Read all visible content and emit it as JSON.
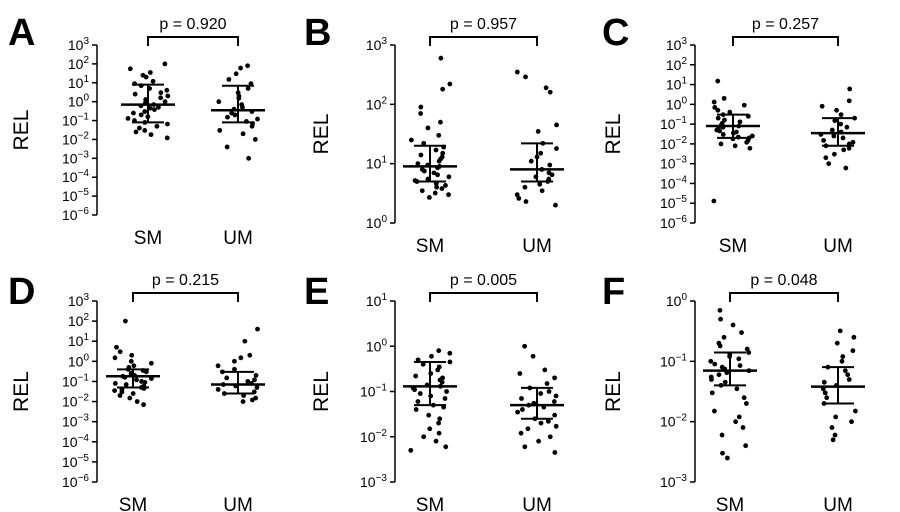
{
  "figure": {
    "panels": [
      {
        "letter": "A",
        "ylabel": "REL",
        "p_value": "p = 0.920",
        "categories": [
          "SM",
          "UM"
        ]
      },
      {
        "letter": "B",
        "ylabel": "REL",
        "p_value": "p = 0.957",
        "categories": [
          "SM",
          "UM"
        ]
      },
      {
        "letter": "C",
        "ylabel": "REL",
        "p_value": "p = 0.257",
        "categories": [
          "SM",
          "UM"
        ]
      },
      {
        "letter": "D",
        "ylabel": "REL",
        "p_value": "p = 0.215",
        "categories": [
          "SM",
          "UM"
        ]
      },
      {
        "letter": "E",
        "ylabel": "REL",
        "p_value": "p = 0.005",
        "categories": [
          "SM",
          "UM"
        ]
      },
      {
        "letter": "F",
        "ylabel": "REL",
        "p_value": "p = 0.048",
        "categories": [
          "SM",
          "UM"
        ]
      }
    ]
  },
  "chart_data": [
    {
      "type": "scatter",
      "panel": "A",
      "ylabel": "REL",
      "yscale": "log",
      "ylim": [
        1e-06,
        1000.0
      ],
      "yticks": [
        "10^-6",
        "10^-5",
        "10^-4",
        "10^-3",
        "10^-2",
        "10^-1",
        "10^0",
        "10^1",
        "10^2",
        "10^3"
      ],
      "categories": [
        "SM",
        "UM"
      ],
      "comparison": "p = 0.920",
      "series": [
        {
          "name": "SM",
          "median": 0.7,
          "q1": 0.08,
          "q3": 8,
          "values": [
            100,
            55,
            35,
            25,
            20,
            12,
            9,
            7,
            5,
            4,
            3,
            2.5,
            2,
            1.6,
            1.3,
            1,
            0.85,
            0.7,
            0.6,
            0.5,
            0.45,
            0.38,
            0.3,
            0.25,
            0.2,
            0.16,
            0.13,
            0.1,
            0.08,
            0.065,
            0.05,
            0.04,
            0.03,
            0.025,
            0.018,
            0.012
          ]
        },
        {
          "name": "UM",
          "median": 0.35,
          "q1": 0.08,
          "q3": 7,
          "values": [
            80,
            60,
            30,
            15,
            9,
            5,
            3,
            2,
            1.5,
            1,
            0.7,
            0.5,
            0.4,
            0.3,
            0.25,
            0.2,
            0.15,
            0.12,
            0.09,
            0.07,
            0.05,
            0.03,
            0.02,
            0.01,
            0.004,
            0.001
          ]
        }
      ]
    },
    {
      "type": "scatter",
      "panel": "B",
      "ylabel": "REL",
      "yscale": "log",
      "ylim": [
        1,
        1000
      ],
      "yticks": [
        "10^0",
        "10^1",
        "10^2",
        "10^3"
      ],
      "categories": [
        "SM",
        "UM"
      ],
      "comparison": "p = 0.957",
      "series": [
        {
          "name": "SM",
          "median": 9,
          "q1": 5,
          "q3": 20,
          "values": [
            600,
            220,
            180,
            90,
            70,
            50,
            40,
            30,
            25,
            22,
            19,
            17,
            15,
            14,
            13,
            12,
            11,
            10,
            9.5,
            9,
            8.5,
            8,
            7.5,
            7,
            6.5,
            6,
            5.5,
            5.2,
            5,
            4.6,
            4.3,
            4,
            3.8,
            3.5,
            3.2,
            3,
            2.7
          ]
        },
        {
          "name": "UM",
          "median": 8,
          "q1": 5,
          "q3": 22,
          "values": [
            350,
            290,
            190,
            160,
            45,
            35,
            22,
            18,
            15,
            13,
            11,
            9.5,
            8,
            7,
            6.5,
            6,
            5.5,
            5,
            4.5,
            4,
            3.5,
            3,
            2.6,
            2.3,
            2
          ]
        }
      ]
    },
    {
      "type": "scatter",
      "panel": "C",
      "ylabel": "REL",
      "yscale": "log",
      "ylim": [
        1e-06,
        1000.0
      ],
      "yticks": [
        "10^-6",
        "10^-5",
        "10^-4",
        "10^-3",
        "10^-2",
        "10^-1",
        "10^0",
        "10^1",
        "10^2",
        "10^3"
      ],
      "categories": [
        "SM",
        "UM"
      ],
      "comparison": "p = 0.257",
      "series": [
        {
          "name": "SM",
          "median": 0.08,
          "q1": 0.02,
          "q3": 0.3,
          "values": [
            15,
            2,
            1.3,
            0.9,
            0.7,
            0.5,
            0.4,
            0.3,
            0.25,
            0.2,
            0.16,
            0.13,
            0.11,
            0.09,
            0.08,
            0.07,
            0.06,
            0.05,
            0.045,
            0.04,
            0.035,
            0.03,
            0.025,
            0.022,
            0.02,
            0.018,
            0.015,
            0.012,
            0.01,
            0.008,
            0.006,
            1.3e-05
          ]
        },
        {
          "name": "UM",
          "median": 0.035,
          "q1": 0.008,
          "q3": 0.2,
          "values": [
            6,
            1.5,
            0.8,
            0.5,
            0.3,
            0.2,
            0.15,
            0.1,
            0.07,
            0.05,
            0.04,
            0.03,
            0.025,
            0.02,
            0.015,
            0.012,
            0.01,
            0.008,
            0.006,
            0.005,
            0.003,
            0.002,
            0.001,
            0.0006
          ]
        }
      ]
    },
    {
      "type": "scatter",
      "panel": "D",
      "ylabel": "REL",
      "yscale": "log",
      "ylim": [
        1e-06,
        1000.0
      ],
      "yticks": [
        "10^-6",
        "10^-5",
        "10^-4",
        "10^-3",
        "10^-2",
        "10^-1",
        "10^0",
        "10^1",
        "10^2",
        "10^3"
      ],
      "categories": [
        "SM",
        "UM"
      ],
      "comparison": "p = 0.215",
      "series": [
        {
          "name": "SM",
          "median": 0.18,
          "q1": 0.05,
          "q3": 0.4,
          "values": [
            100,
            5,
            3,
            2,
            1.5,
            1,
            0.8,
            0.6,
            0.5,
            0.4,
            0.35,
            0.3,
            0.25,
            0.2,
            0.18,
            0.16,
            0.14,
            0.12,
            0.1,
            0.09,
            0.08,
            0.07,
            0.06,
            0.05,
            0.045,
            0.04,
            0.035,
            0.03,
            0.025,
            0.02,
            0.015,
            0.01,
            0.007
          ]
        },
        {
          "name": "UM",
          "median": 0.07,
          "q1": 0.025,
          "q3": 0.3,
          "values": [
            40,
            10,
            2,
            1.5,
            1,
            0.6,
            0.4,
            0.3,
            0.2,
            0.15,
            0.12,
            0.1,
            0.08,
            0.07,
            0.06,
            0.05,
            0.04,
            0.03,
            0.025,
            0.02,
            0.015,
            0.012,
            0.01
          ]
        }
      ]
    },
    {
      "type": "scatter",
      "panel": "E",
      "ylabel": "REL",
      "yscale": "log",
      "ylim": [
        0.001,
        10
      ],
      "yticks": [
        "10^-3",
        "10^-2",
        "10^-1",
        "10^0",
        "10^1"
      ],
      "categories": [
        "SM",
        "UM"
      ],
      "comparison": "p = 0.005",
      "series": [
        {
          "name": "SM",
          "median": 0.13,
          "q1": 0.05,
          "q3": 0.45,
          "values": [
            0.8,
            0.7,
            0.6,
            0.5,
            0.45,
            0.4,
            0.35,
            0.3,
            0.25,
            0.22,
            0.2,
            0.18,
            0.16,
            0.14,
            0.13,
            0.12,
            0.11,
            0.1,
            0.09,
            0.08,
            0.07,
            0.06,
            0.05,
            0.045,
            0.04,
            0.03,
            0.025,
            0.02,
            0.015,
            0.012,
            0.01,
            0.008,
            0.006,
            0.005
          ]
        },
        {
          "name": "UM",
          "median": 0.05,
          "q1": 0.025,
          "q3": 0.12,
          "values": [
            1,
            0.6,
            0.3,
            0.25,
            0.2,
            0.15,
            0.12,
            0.1,
            0.09,
            0.08,
            0.07,
            0.06,
            0.055,
            0.05,
            0.045,
            0.04,
            0.035,
            0.03,
            0.025,
            0.022,
            0.02,
            0.017,
            0.015,
            0.012,
            0.01,
            0.008,
            0.006,
            0.0045
          ]
        }
      ]
    },
    {
      "type": "scatter",
      "panel": "F",
      "ylabel": "REL",
      "yscale": "log",
      "ylim": [
        0.001,
        1
      ],
      "yticks": [
        "10^-3",
        "10^-2",
        "10^-1",
        "10^0"
      ],
      "categories": [
        "SM",
        "UM"
      ],
      "comparison": "p = 0.048",
      "series": [
        {
          "name": "SM",
          "median": 0.07,
          "q1": 0.04,
          "q3": 0.14,
          "values": [
            0.7,
            0.5,
            0.4,
            0.3,
            0.25,
            0.2,
            0.18,
            0.16,
            0.14,
            0.13,
            0.12,
            0.11,
            0.1,
            0.09,
            0.085,
            0.08,
            0.075,
            0.07,
            0.065,
            0.06,
            0.055,
            0.05,
            0.045,
            0.04,
            0.035,
            0.03,
            0.025,
            0.02,
            0.015,
            0.012,
            0.01,
            0.008,
            0.006,
            0.004,
            0.003,
            0.0025
          ]
        },
        {
          "name": "UM",
          "median": 0.038,
          "q1": 0.02,
          "q3": 0.08,
          "values": [
            0.32,
            0.25,
            0.2,
            0.15,
            0.12,
            0.1,
            0.08,
            0.07,
            0.06,
            0.05,
            0.045,
            0.04,
            0.035,
            0.03,
            0.025,
            0.02,
            0.015,
            0.012,
            0.01,
            0.008,
            0.006,
            0.005
          ]
        }
      ]
    }
  ]
}
